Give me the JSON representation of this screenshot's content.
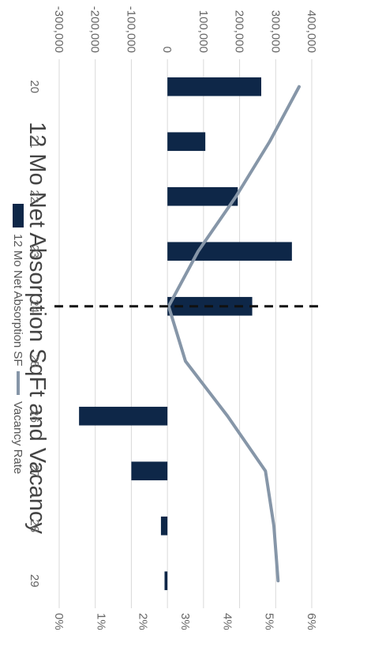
{
  "chart_data": {
    "type": "bar",
    "title": "12 Mo Net Absorption SqFt and Vacancy",
    "categories": [
      "20",
      "21",
      "22",
      "23",
      "24",
      "25",
      "26",
      "27",
      "28",
      "29"
    ],
    "series": [
      {
        "name": "12 Mo Net Absorption SF",
        "kind": "bar",
        "axis": "primary",
        "values": [
          260000,
          105000,
          195000,
          345000,
          235000,
          0,
          -245000,
          -100000,
          -18000,
          -8000
        ]
      },
      {
        "name": "Vacancy Rate",
        "kind": "line",
        "axis": "secondary",
        "values": [
          5.7,
          5.0,
          4.2,
          3.3,
          2.6,
          3.0,
          4.0,
          4.9,
          5.1,
          5.2
        ]
      }
    ],
    "primary_axis": {
      "min": -300000,
      "max": 400000,
      "step": 100000,
      "tick_labels": [
        "400,000",
        "300,000",
        "200,000",
        "100,000",
        "0",
        "-100,000",
        "-200,000",
        "-300,000"
      ]
    },
    "secondary_axis": {
      "min": 0,
      "max": 6,
      "step": 1,
      "tick_labels": [
        "6%",
        "5%",
        "4%",
        "3%",
        "2%",
        "1%",
        "0%"
      ]
    },
    "reference_line_at": "24",
    "grid": true,
    "legend_position": "bottom",
    "orientation": "rotated-90-clockwise",
    "colors": {
      "bar": "#0e2748",
      "line": "#8696a8",
      "grid": "#d9d9d9",
      "reference": "#111111"
    }
  }
}
